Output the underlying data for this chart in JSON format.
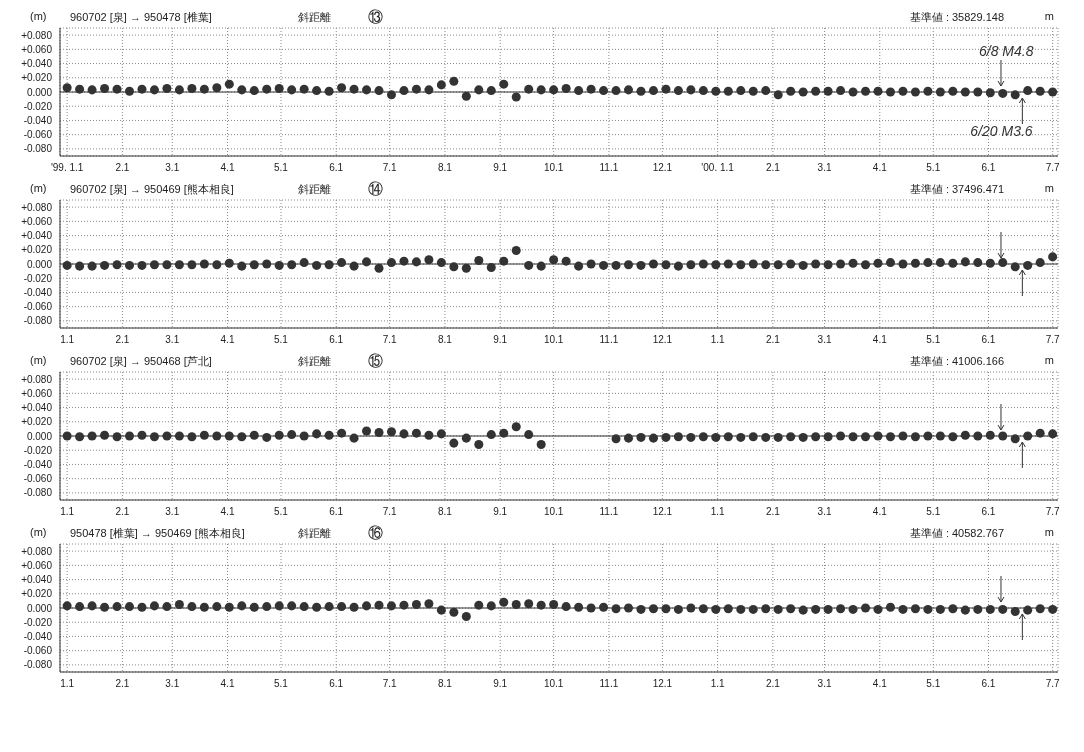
{
  "chart_data": [
    {
      "type": "scatter",
      "title": "960702 [泉] → 950478 [椎葉]",
      "subtitle": "斜距離",
      "ylabel": "(m)",
      "annotations": [
        "⑬",
        "基準値 : 35829.148",
        "m",
        {
          "text": "6/8 M4.8",
          "x": "2000-06-08",
          "y": 0
        },
        {
          "text": "6/20 M3.6",
          "x": "2000-06-20",
          "y": 0
        }
      ],
      "x": [
        "1999-01-01",
        "1999-01-08",
        "1999-01-15",
        "1999-01-22",
        "1999-01-29",
        "1999-02-05",
        "1999-02-12",
        "1999-02-19",
        "1999-02-26",
        "1999-03-05",
        "1999-03-12",
        "1999-03-19",
        "1999-03-26",
        "1999-04-02",
        "1999-04-09",
        "1999-04-16",
        "1999-04-23",
        "1999-04-30",
        "1999-05-07",
        "1999-05-14",
        "1999-05-21",
        "1999-05-28",
        "1999-06-04",
        "1999-06-11",
        "1999-06-18",
        "1999-06-25",
        "1999-07-02",
        "1999-07-09",
        "1999-07-16",
        "1999-07-23",
        "1999-07-30",
        "1999-08-06",
        "1999-08-13",
        "1999-08-20",
        "1999-08-27",
        "1999-09-03",
        "1999-09-10",
        "1999-09-17",
        "1999-09-24",
        "1999-10-01",
        "1999-10-08",
        "1999-10-15",
        "1999-10-22",
        "1999-10-29",
        "1999-11-05",
        "1999-11-12",
        "1999-11-19",
        "1999-11-26",
        "1999-12-03",
        "1999-12-10",
        "1999-12-17",
        "1999-12-24",
        "1999-12-31",
        "2000-01-07",
        "2000-01-14",
        "2000-01-21",
        "2000-01-28",
        "2000-02-04",
        "2000-02-11",
        "2000-02-18",
        "2000-02-25",
        "2000-03-03",
        "2000-03-10",
        "2000-03-17",
        "2000-03-24",
        "2000-03-31",
        "2000-04-07",
        "2000-04-14",
        "2000-04-21",
        "2000-04-28",
        "2000-05-05",
        "2000-05-12",
        "2000-05-19",
        "2000-05-26",
        "2000-06-02",
        "2000-06-09",
        "2000-06-16",
        "2000-06-23",
        "2000-06-30",
        "2000-07-07"
      ],
      "series": [
        {
          "color": "#333333",
          "values": [
            0.006,
            0.004,
            0.003,
            0.005,
            0.004,
            0.001,
            0.004,
            0.003,
            0.005,
            0.003,
            0.005,
            0.004,
            0.006,
            0.011,
            0.003,
            0.002,
            0.004,
            0.005,
            0.003,
            0.004,
            0.002,
            0.001,
            0.006,
            0.004,
            0.003,
            0.002,
            -0.004,
            0.002,
            0.004,
            0.003,
            0.01,
            0.015,
            -0.006,
            0.003,
            0.002,
            0.011,
            -0.007,
            0.004,
            0.003,
            0.003,
            0.005,
            0.002,
            0.004,
            0.002,
            0.002,
            0.003,
            0.001,
            0.002,
            0.004,
            0.002,
            0.003,
            0.002,
            0.001,
            0.001,
            0.002,
            0.001,
            0.002,
            -0.004,
            0.001,
            0.0,
            0.001,
            0.001,
            0.002,
            0.0,
            0.001,
            0.001,
            0.0,
            0.001,
            0.0,
            0.001,
            0.0,
            0.001,
            0.0,
            0.0,
            -0.001,
            -0.002,
            -0.004,
            0.002,
            0.001,
            0.0
          ]
        }
      ],
      "xlim": [
        "1998-12-28",
        "2000-07-10"
      ],
      "xticks": [
        {
          "value": "1999-01-01",
          "label": "'99. 1.1"
        },
        {
          "value": "1999-02-01",
          "label": "2.1"
        },
        {
          "value": "1999-03-01",
          "label": "3.1"
        },
        {
          "value": "1999-04-01",
          "label": "4.1"
        },
        {
          "value": "1999-05-01",
          "label": "5.1"
        },
        {
          "value": "1999-06-01",
          "label": "6.1"
        },
        {
          "value": "1999-07-01",
          "label": "7.1"
        },
        {
          "value": "1999-08-01",
          "label": "8.1"
        },
        {
          "value": "1999-09-01",
          "label": "9.1"
        },
        {
          "value": "1999-10-01",
          "label": "10.1"
        },
        {
          "value": "1999-11-01",
          "label": "11.1"
        },
        {
          "value": "1999-12-01",
          "label": "12.1"
        },
        {
          "value": "2000-01-01",
          "label": "'00. 1.1"
        },
        {
          "value": "2000-02-01",
          "label": "2.1"
        },
        {
          "value": "2000-03-01",
          "label": "3.1"
        },
        {
          "value": "2000-04-01",
          "label": "4.1"
        },
        {
          "value": "2000-05-01",
          "label": "5.1"
        },
        {
          "value": "2000-06-01",
          "label": "6.1"
        },
        {
          "value": "2000-07-07",
          "label": "7.7"
        }
      ],
      "ylim": [
        -0.09,
        0.09
      ],
      "yticks": [
        {
          "value": 0.08,
          "label": "+0.080"
        },
        {
          "value": 0.06,
          "label": "+0.060"
        },
        {
          "value": 0.04,
          "label": "+0.040"
        },
        {
          "value": 0.02,
          "label": "+0.020"
        },
        {
          "value": 0,
          "label": "0.000"
        },
        {
          "value": -0.02,
          "label": "-0.020"
        },
        {
          "value": -0.04,
          "label": "-0.040"
        },
        {
          "value": -0.06,
          "label": "-0.060"
        },
        {
          "value": -0.08,
          "label": "-0.080"
        }
      ],
      "grid": true,
      "marker": "circle",
      "legend": false,
      "ref_lines": [
        {
          "axis": "y",
          "value": 0,
          "color": "#333333",
          "line_style": "solid"
        }
      ]
    },
    {
      "type": "scatter",
      "title": "960702 [泉] → 950469 [熊本相良]",
      "subtitle": "斜距離",
      "ylabel": "(m)",
      "annotations": [
        "⑭",
        "基準値 : 37496.471",
        "m"
      ],
      "x": [
        "1999-01-01",
        "1999-01-08",
        "1999-01-15",
        "1999-01-22",
        "1999-01-29",
        "1999-02-05",
        "1999-02-12",
        "1999-02-19",
        "1999-02-26",
        "1999-03-05",
        "1999-03-12",
        "1999-03-19",
        "1999-03-26",
        "1999-04-02",
        "1999-04-09",
        "1999-04-16",
        "1999-04-23",
        "1999-04-30",
        "1999-05-07",
        "1999-05-14",
        "1999-05-21",
        "1999-05-28",
        "1999-06-04",
        "1999-06-11",
        "1999-06-18",
        "1999-06-25",
        "1999-07-02",
        "1999-07-09",
        "1999-07-16",
        "1999-07-23",
        "1999-07-30",
        "1999-08-06",
        "1999-08-13",
        "1999-08-20",
        "1999-08-27",
        "1999-09-03",
        "1999-09-10",
        "1999-09-17",
        "1999-09-24",
        "1999-10-01",
        "1999-10-08",
        "1999-10-15",
        "1999-10-22",
        "1999-10-29",
        "1999-11-05",
        "1999-11-12",
        "1999-11-19",
        "1999-11-26",
        "1999-12-03",
        "1999-12-10",
        "1999-12-17",
        "1999-12-24",
        "1999-12-31",
        "2000-01-07",
        "2000-01-14",
        "2000-01-21",
        "2000-01-28",
        "2000-02-04",
        "2000-02-11",
        "2000-02-18",
        "2000-02-25",
        "2000-03-03",
        "2000-03-10",
        "2000-03-17",
        "2000-03-24",
        "2000-03-31",
        "2000-04-07",
        "2000-04-14",
        "2000-04-21",
        "2000-04-28",
        "2000-05-05",
        "2000-05-12",
        "2000-05-19",
        "2000-05-26",
        "2000-06-02",
        "2000-06-09",
        "2000-06-16",
        "2000-06-23",
        "2000-06-30",
        "2000-07-07"
      ],
      "series": [
        {
          "color": "#333333",
          "values": [
            -0.002,
            -0.003,
            -0.003,
            -0.002,
            -0.001,
            -0.002,
            -0.002,
            -0.001,
            -0.001,
            -0.001,
            -0.001,
            0.0,
            -0.001,
            0.001,
            -0.003,
            -0.001,
            0.0,
            -0.002,
            -0.001,
            0.002,
            -0.002,
            -0.001,
            0.002,
            -0.003,
            0.003,
            -0.006,
            0.002,
            0.004,
            0.003,
            0.006,
            0.002,
            -0.004,
            -0.006,
            0.005,
            -0.005,
            0.004,
            0.019,
            -0.002,
            -0.003,
            0.006,
            0.004,
            -0.003,
            0.0,
            -0.002,
            -0.002,
            -0.001,
            -0.002,
            0.0,
            -0.001,
            -0.003,
            -0.001,
            0.0,
            -0.001,
            0.0,
            -0.001,
            0.0,
            -0.001,
            -0.001,
            0.0,
            -0.002,
            0.0,
            -0.001,
            0.0,
            0.001,
            -0.001,
            0.001,
            0.002,
            0.0,
            0.001,
            0.002,
            0.002,
            0.001,
            0.003,
            0.002,
            0.001,
            0.002,
            -0.004,
            -0.002,
            0.002,
            0.01
          ]
        }
      ],
      "xlim": [
        "1998-12-28",
        "2000-07-10"
      ],
      "xticks": [
        {
          "value": "1999-01-01",
          "label": "1.1"
        },
        {
          "value": "1999-02-01",
          "label": "2.1"
        },
        {
          "value": "1999-03-01",
          "label": "3.1"
        },
        {
          "value": "1999-04-01",
          "label": "4.1"
        },
        {
          "value": "1999-05-01",
          "label": "5.1"
        },
        {
          "value": "1999-06-01",
          "label": "6.1"
        },
        {
          "value": "1999-07-01",
          "label": "7.1"
        },
        {
          "value": "1999-08-01",
          "label": "8.1"
        },
        {
          "value": "1999-09-01",
          "label": "9.1"
        },
        {
          "value": "1999-10-01",
          "label": "10.1"
        },
        {
          "value": "1999-11-01",
          "label": "11.1"
        },
        {
          "value": "1999-12-01",
          "label": "12.1"
        },
        {
          "value": "2000-01-01",
          "label": "1.1"
        },
        {
          "value": "2000-02-01",
          "label": "2.1"
        },
        {
          "value": "2000-03-01",
          "label": "3.1"
        },
        {
          "value": "2000-04-01",
          "label": "4.1"
        },
        {
          "value": "2000-05-01",
          "label": "5.1"
        },
        {
          "value": "2000-06-01",
          "label": "6.1"
        },
        {
          "value": "2000-07-07",
          "label": "7.7"
        }
      ],
      "ylim": [
        -0.09,
        0.09
      ],
      "yticks": [
        {
          "value": 0.08,
          "label": "+0.080"
        },
        {
          "value": 0.06,
          "label": "+0.060"
        },
        {
          "value": 0.04,
          "label": "+0.040"
        },
        {
          "value": 0.02,
          "label": "+0.020"
        },
        {
          "value": 0,
          "label": "0.000"
        },
        {
          "value": -0.02,
          "label": "-0.020"
        },
        {
          "value": -0.04,
          "label": "-0.040"
        },
        {
          "value": -0.06,
          "label": "-0.060"
        },
        {
          "value": -0.08,
          "label": "-0.080"
        }
      ],
      "grid": true,
      "marker": "circle",
      "legend": false,
      "ref_lines": [
        {
          "axis": "y",
          "value": 0,
          "color": "#333333",
          "line_style": "solid"
        }
      ]
    },
    {
      "type": "scatter",
      "title": "960702 [泉] → 950468 [芦北]",
      "subtitle": "斜距離",
      "ylabel": "(m)",
      "annotations": [
        "⑮",
        "基準値 : 41006.166",
        "m"
      ],
      "x": [
        "1999-01-01",
        "1999-01-08",
        "1999-01-15",
        "1999-01-22",
        "1999-01-29",
        "1999-02-05",
        "1999-02-12",
        "1999-02-19",
        "1999-02-26",
        "1999-03-05",
        "1999-03-12",
        "1999-03-19",
        "1999-03-26",
        "1999-04-02",
        "1999-04-09",
        "1999-04-16",
        "1999-04-23",
        "1999-04-30",
        "1999-05-07",
        "1999-05-14",
        "1999-05-21",
        "1999-05-28",
        "1999-06-04",
        "1999-06-11",
        "1999-06-18",
        "1999-06-25",
        "1999-07-02",
        "1999-07-09",
        "1999-07-16",
        "1999-07-23",
        "1999-07-30",
        "1999-08-06",
        "1999-08-13",
        "1999-08-20",
        "1999-08-27",
        "1999-09-03",
        "1999-09-10",
        "1999-09-17",
        "1999-09-24",
        "1999-10-01",
        "1999-10-08",
        "1999-10-15",
        "1999-10-22",
        "1999-10-29",
        "1999-11-05",
        "1999-11-12",
        "1999-11-19",
        "1999-11-26",
        "1999-12-03",
        "1999-12-10",
        "1999-12-17",
        "1999-12-24",
        "1999-12-31",
        "2000-01-07",
        "2000-01-14",
        "2000-01-21",
        "2000-01-28",
        "2000-02-04",
        "2000-02-11",
        "2000-02-18",
        "2000-02-25",
        "2000-03-03",
        "2000-03-10",
        "2000-03-17",
        "2000-03-24",
        "2000-03-31",
        "2000-04-07",
        "2000-04-14",
        "2000-04-21",
        "2000-04-28",
        "2000-05-05",
        "2000-05-12",
        "2000-05-19",
        "2000-05-26",
        "2000-06-02",
        "2000-06-09",
        "2000-06-16",
        "2000-06-23",
        "2000-06-30",
        "2000-07-07"
      ],
      "series": [
        {
          "color": "#333333",
          "values": [
            0.0,
            -0.001,
            0.0,
            0.001,
            -0.001,
            0.0,
            0.001,
            -0.001,
            0.0,
            0.0,
            -0.001,
            0.001,
            0.0,
            0.0,
            -0.001,
            0.001,
            -0.002,
            0.001,
            0.002,
            0.0,
            0.003,
            0.001,
            0.004,
            -0.003,
            0.007,
            0.005,
            0.006,
            0.003,
            0.004,
            0.001,
            0.003,
            -0.01,
            -0.003,
            -0.012,
            0.002,
            0.004,
            0.013,
            0.002,
            -0.012,
            null,
            null,
            null,
            null,
            null,
            -0.004,
            -0.003,
            -0.002,
            -0.003,
            -0.002,
            -0.001,
            -0.002,
            -0.001,
            -0.002,
            -0.001,
            -0.002,
            -0.001,
            -0.002,
            -0.002,
            -0.001,
            -0.002,
            -0.001,
            -0.001,
            0.0,
            -0.001,
            -0.001,
            0.0,
            -0.001,
            0.0,
            -0.001,
            0.0,
            0.0,
            -0.001,
            0.001,
            0.0,
            0.001,
            0.0,
            -0.004,
            0.0,
            0.004,
            0.003
          ]
        }
      ],
      "xlim": [
        "1998-12-28",
        "2000-07-10"
      ],
      "xticks": [
        {
          "value": "1999-01-01",
          "label": "1.1"
        },
        {
          "value": "1999-02-01",
          "label": "2.1"
        },
        {
          "value": "1999-03-01",
          "label": "3.1"
        },
        {
          "value": "1999-04-01",
          "label": "4.1"
        },
        {
          "value": "1999-05-01",
          "label": "5.1"
        },
        {
          "value": "1999-06-01",
          "label": "6.1"
        },
        {
          "value": "1999-07-01",
          "label": "7.1"
        },
        {
          "value": "1999-08-01",
          "label": "8.1"
        },
        {
          "value": "1999-09-01",
          "label": "9.1"
        },
        {
          "value": "1999-10-01",
          "label": "10.1"
        },
        {
          "value": "1999-11-01",
          "label": "11.1"
        },
        {
          "value": "1999-12-01",
          "label": "12.1"
        },
        {
          "value": "2000-01-01",
          "label": "1.1"
        },
        {
          "value": "2000-02-01",
          "label": "2.1"
        },
        {
          "value": "2000-03-01",
          "label": "3.1"
        },
        {
          "value": "2000-04-01",
          "label": "4.1"
        },
        {
          "value": "2000-05-01",
          "label": "5.1"
        },
        {
          "value": "2000-06-01",
          "label": "6.1"
        },
        {
          "value": "2000-07-07",
          "label": "7.7"
        }
      ],
      "ylim": [
        -0.09,
        0.09
      ],
      "yticks": [
        {
          "value": 0.08,
          "label": "+0.080"
        },
        {
          "value": 0.06,
          "label": "+0.060"
        },
        {
          "value": 0.04,
          "label": "+0.040"
        },
        {
          "value": 0.02,
          "label": "+0.020"
        },
        {
          "value": 0,
          "label": "0.000"
        },
        {
          "value": -0.02,
          "label": "-0.020"
        },
        {
          "value": -0.04,
          "label": "-0.040"
        },
        {
          "value": -0.06,
          "label": "-0.060"
        },
        {
          "value": -0.08,
          "label": "-0.080"
        }
      ],
      "grid": true,
      "marker": "circle",
      "legend": false,
      "ref_lines": [
        {
          "axis": "y",
          "value": 0,
          "color": "#333333",
          "line_style": "solid"
        }
      ]
    },
    {
      "type": "scatter",
      "title": "950478 [椎葉] → 950469 [熊本相良]",
      "subtitle": "斜距離",
      "ylabel": "(m)",
      "annotations": [
        "⑯",
        "基準値 : 40582.767",
        "m"
      ],
      "x": [
        "1999-01-01",
        "1999-01-08",
        "1999-01-15",
        "1999-01-22",
        "1999-01-29",
        "1999-02-05",
        "1999-02-12",
        "1999-02-19",
        "1999-02-26",
        "1999-03-05",
        "1999-03-12",
        "1999-03-19",
        "1999-03-26",
        "1999-04-02",
        "1999-04-09",
        "1999-04-16",
        "1999-04-23",
        "1999-04-30",
        "1999-05-07",
        "1999-05-14",
        "1999-05-21",
        "1999-05-28",
        "1999-06-04",
        "1999-06-11",
        "1999-06-18",
        "1999-06-25",
        "1999-07-02",
        "1999-07-09",
        "1999-07-16",
        "1999-07-23",
        "1999-07-30",
        "1999-08-06",
        "1999-08-13",
        "1999-08-20",
        "1999-08-27",
        "1999-09-03",
        "1999-09-10",
        "1999-09-17",
        "1999-09-24",
        "1999-10-01",
        "1999-10-08",
        "1999-10-15",
        "1999-10-22",
        "1999-10-29",
        "1999-11-05",
        "1999-11-12",
        "1999-11-19",
        "1999-11-26",
        "1999-12-03",
        "1999-12-10",
        "1999-12-17",
        "1999-12-24",
        "1999-12-31",
        "2000-01-07",
        "2000-01-14",
        "2000-01-21",
        "2000-01-28",
        "2000-02-04",
        "2000-02-11",
        "2000-02-18",
        "2000-02-25",
        "2000-03-03",
        "2000-03-10",
        "2000-03-17",
        "2000-03-24",
        "2000-03-31",
        "2000-04-07",
        "2000-04-14",
        "2000-04-21",
        "2000-04-28",
        "2000-05-05",
        "2000-05-12",
        "2000-05-19",
        "2000-05-26",
        "2000-06-02",
        "2000-06-09",
        "2000-06-16",
        "2000-06-23",
        "2000-06-30",
        "2000-07-07"
      ],
      "series": [
        {
          "color": "#333333",
          "values": [
            0.003,
            0.002,
            0.003,
            0.001,
            0.002,
            0.002,
            0.001,
            0.003,
            0.002,
            0.005,
            0.002,
            0.001,
            0.002,
            0.001,
            0.003,
            0.001,
            0.002,
            0.003,
            0.003,
            0.002,
            0.001,
            0.002,
            0.002,
            0.001,
            0.003,
            0.004,
            0.003,
            0.004,
            0.005,
            0.006,
            -0.003,
            -0.006,
            -0.012,
            0.004,
            0.003,
            0.008,
            0.005,
            0.006,
            0.004,
            0.005,
            0.002,
            0.001,
            0.0,
            0.001,
            -0.001,
            0.0,
            -0.002,
            -0.001,
            -0.001,
            -0.002,
            0.0,
            -0.001,
            -0.002,
            -0.001,
            -0.002,
            -0.002,
            -0.001,
            -0.002,
            -0.001,
            -0.003,
            -0.002,
            -0.002,
            -0.001,
            -0.002,
            0.0,
            -0.002,
            0.001,
            -0.002,
            -0.001,
            -0.002,
            -0.002,
            -0.001,
            -0.003,
            -0.002,
            -0.002,
            -0.002,
            -0.005,
            -0.003,
            -0.001,
            -0.002
          ]
        }
      ],
      "xlim": [
        "1998-12-28",
        "2000-07-10"
      ],
      "xticks": [
        {
          "value": "1999-01-01",
          "label": "1.1"
        },
        {
          "value": "1999-02-01",
          "label": "2.1"
        },
        {
          "value": "1999-03-01",
          "label": "3.1"
        },
        {
          "value": "1999-04-01",
          "label": "4.1"
        },
        {
          "value": "1999-05-01",
          "label": "5.1"
        },
        {
          "value": "1999-06-01",
          "label": "6.1"
        },
        {
          "value": "1999-07-01",
          "label": "7.1"
        },
        {
          "value": "1999-08-01",
          "label": "8.1"
        },
        {
          "value": "1999-09-01",
          "label": "9.1"
        },
        {
          "value": "1999-10-01",
          "label": "10.1"
        },
        {
          "value": "1999-11-01",
          "label": "11.1"
        },
        {
          "value": "1999-12-01",
          "label": "12.1"
        },
        {
          "value": "2000-01-01",
          "label": "1.1"
        },
        {
          "value": "2000-02-01",
          "label": "2.1"
        },
        {
          "value": "2000-03-01",
          "label": "3.1"
        },
        {
          "value": "2000-04-01",
          "label": "4.1"
        },
        {
          "value": "2000-05-01",
          "label": "5.1"
        },
        {
          "value": "2000-06-01",
          "label": "6.1"
        },
        {
          "value": "2000-07-07",
          "label": "7.7"
        }
      ],
      "ylim": [
        -0.09,
        0.09
      ],
      "yticks": [
        {
          "value": 0.08,
          "label": "+0.080"
        },
        {
          "value": 0.06,
          "label": "+0.060"
        },
        {
          "value": 0.04,
          "label": "+0.040"
        },
        {
          "value": 0.02,
          "label": "+0.020"
        },
        {
          "value": 0,
          "label": "0.000"
        },
        {
          "value": -0.02,
          "label": "-0.020"
        },
        {
          "value": -0.04,
          "label": "-0.040"
        },
        {
          "value": -0.06,
          "label": "-0.060"
        },
        {
          "value": -0.08,
          "label": "-0.080"
        }
      ],
      "grid": true,
      "marker": "circle",
      "legend": false,
      "ref_lines": [
        {
          "axis": "y",
          "value": 0,
          "color": "#333333",
          "line_style": "solid"
        }
      ]
    }
  ]
}
